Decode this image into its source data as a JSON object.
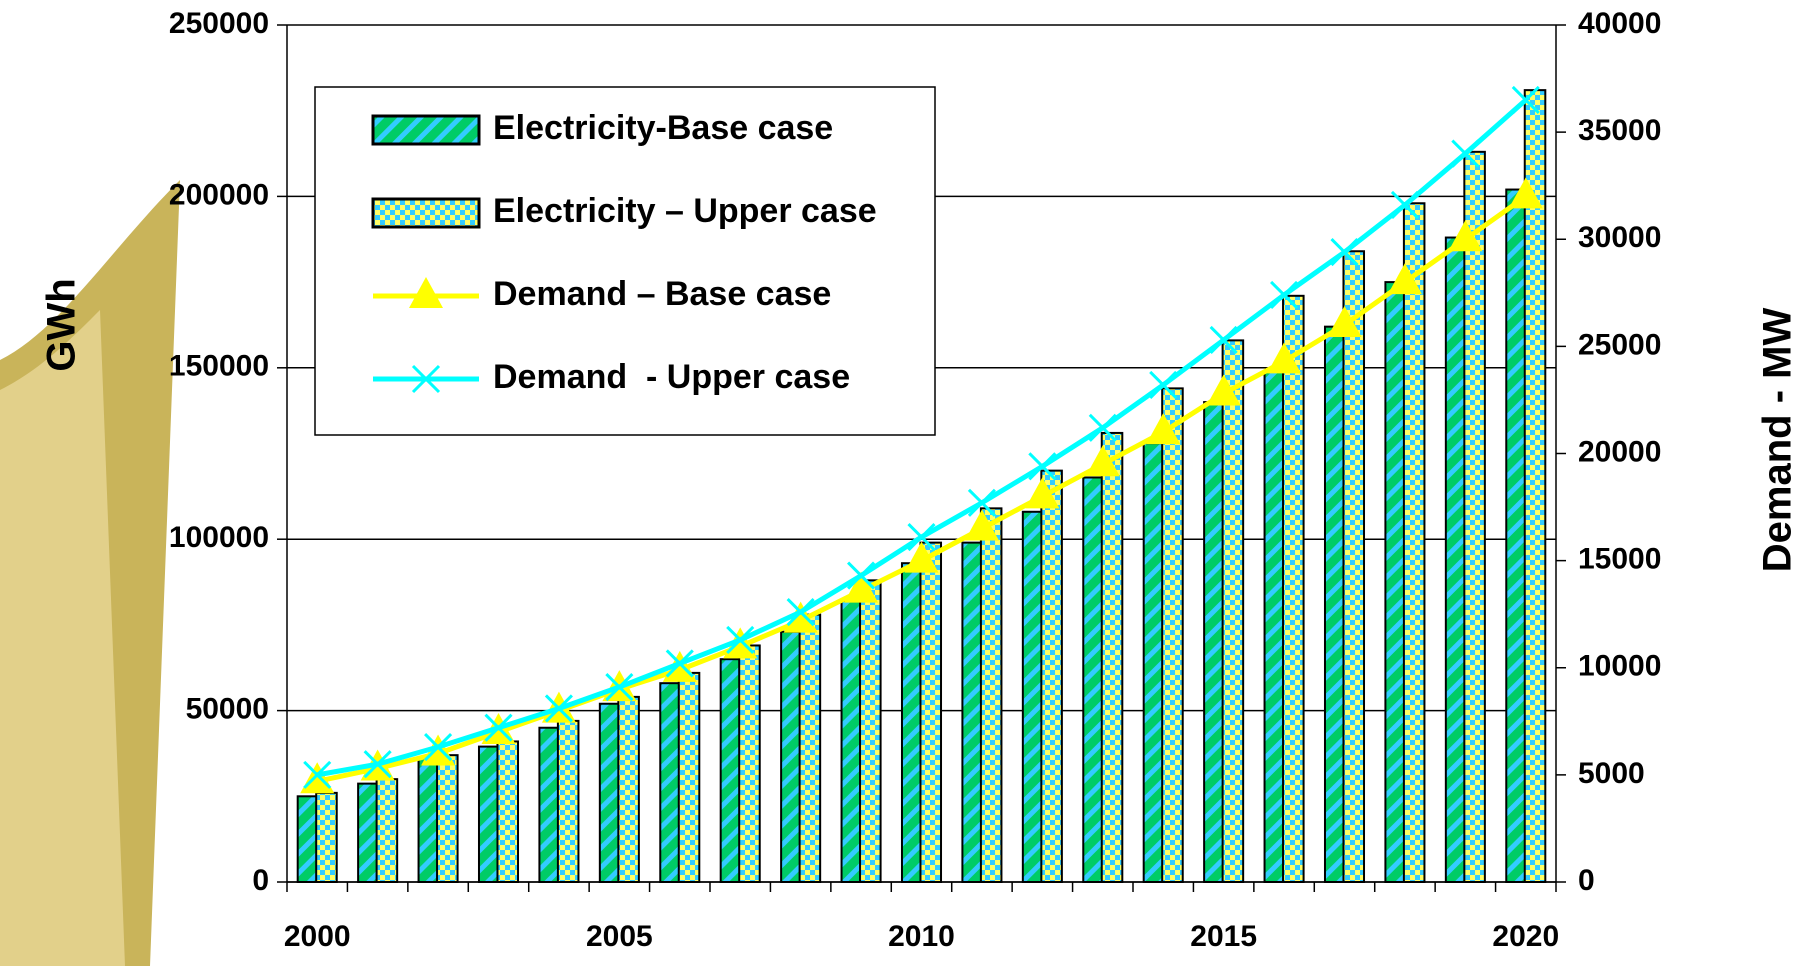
{
  "chart_data": {
    "type": "bar-line",
    "categories": [
      "2000",
      null,
      null,
      null,
      null,
      "2005",
      null,
      null,
      null,
      null,
      "2010",
      null,
      null,
      null,
      null,
      "2015",
      null,
      null,
      null,
      null,
      "2020"
    ],
    "y_label": "GWh",
    "y2_label": "Demand - MW",
    "ylim": [
      0,
      250000
    ],
    "yticks": [
      0,
      50000,
      100000,
      150000,
      200000,
      250000
    ],
    "y2lim": [
      0,
      40000
    ],
    "y2ticks": [
      0,
      5000,
      10000,
      15000,
      20000,
      25000,
      30000,
      35000,
      40000
    ],
    "grid": true,
    "legend": "upper left",
    "series": [
      {
        "name": "Electricity-Base case",
        "type": "bar",
        "color": "#00cc66",
        "values": [
          25000,
          28700,
          36000,
          39500,
          45000,
          52000,
          58000,
          65000,
          73000,
          82000,
          93000,
          99000,
          108000,
          118000,
          128000,
          140000,
          149000,
          162000,
          175000,
          188000,
          202000
        ]
      },
      {
        "name": "Electricity – Upper case",
        "type": "bar",
        "color": "#ffff66",
        "values": [
          26000,
          30000,
          37000,
          41000,
          47000,
          54000,
          61000,
          69000,
          78000,
          88000,
          99000,
          109000,
          120000,
          131000,
          144000,
          158000,
          171000,
          184000,
          198000,
          213000,
          231000
        ]
      },
      {
        "name": "Demand – Base case",
        "type": "line",
        "axis": "y2",
        "color": "#ffff00",
        "marker": "triangle",
        "values": [
          4700,
          5300,
          6000,
          7000,
          8000,
          9000,
          9900,
          11000,
          12200,
          13600,
          15000,
          16500,
          18000,
          19500,
          21000,
          22800,
          24300,
          26000,
          28000,
          30000,
          32000
        ]
      },
      {
        "name": "Demand  - Upper case",
        "type": "line",
        "axis": "y2",
        "color": "#00ffff",
        "marker": "x",
        "values": [
          5000,
          5500,
          6300,
          7200,
          8100,
          9100,
          10200,
          11300,
          12600,
          14300,
          16100,
          17700,
          19400,
          21200,
          23200,
          25300,
          27400,
          29400,
          31600,
          34000,
          36500
        ]
      }
    ]
  }
}
